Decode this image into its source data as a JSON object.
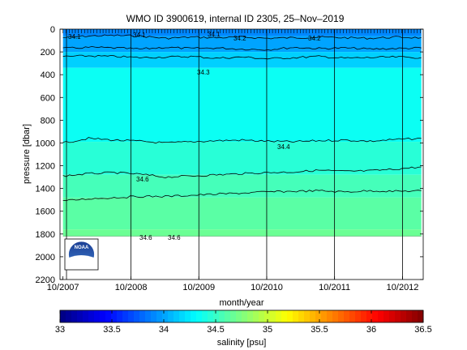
{
  "title": "WMO ID 3900619, internal ID 2305, 25–Nov–2019",
  "chart_data": {
    "type": "heatmap",
    "title": "WMO ID 3900619, internal ID 2305, 25–Nov–2019",
    "xlabel": "month/year",
    "ylabel": "pressure [dbar]",
    "x_ticks": [
      "10/2007",
      "10/2008",
      "10/2009",
      "10/2010",
      "10/2011",
      "10/2012"
    ],
    "xlim": [
      "2007-09-15",
      "2013-01-20"
    ],
    "ylim": [
      2200,
      0
    ],
    "y_ticks": [
      0,
      200,
      400,
      600,
      800,
      1000,
      1200,
      1400,
      1600,
      1800,
      2000,
      2200
    ],
    "y_reversed": true,
    "data_extent": {
      "x_start": "2007-10-01",
      "x_end": "2013-01-10",
      "max_pressure": 1820
    },
    "vertical_lines": [
      "2007-10-20",
      "2008-10-01",
      "2009-10-01",
      "2010-10-01",
      "2011-10-01",
      "2012-10-01"
    ],
    "colorbar": {
      "label": "salinity [psu]",
      "range": [
        33,
        36.5
      ],
      "ticks": [
        "33",
        "33.5",
        "34",
        "34.5",
        "35",
        "35.5",
        "36",
        "36.5"
      ],
      "colormap": "jet"
    },
    "layers": [
      {
        "p_top": 0,
        "salinity": 33.9
      },
      {
        "p_top": 60,
        "salinity": 34.0
      },
      {
        "p_top": 200,
        "salinity": 34.15
      },
      {
        "p_top": 340,
        "salinity": 34.35
      },
      {
        "p_top": 990,
        "salinity": 34.45
      },
      {
        "p_top": 1280,
        "salinity": 34.55
      },
      {
        "p_top": 1480,
        "salinity": 34.62
      },
      {
        "p_top": 1760,
        "salinity": 34.68
      }
    ],
    "contours": [
      {
        "level": 34.1,
        "pressures": [
          75,
          60,
          55,
          60,
          80,
          70,
          75,
          70,
          80,
          75,
          70,
          75,
          80,
          70,
          75
        ]
      },
      {
        "level": 34.2,
        "pressures": [
          170,
          160,
          165,
          175,
          160,
          170,
          165,
          175,
          180,
          160,
          170,
          165,
          175,
          170,
          165
        ]
      },
      {
        "level": 34.3,
        "pressures": [
          240,
          235,
          240,
          250,
          245,
          240,
          255,
          245,
          260,
          250,
          240,
          255,
          250,
          245,
          250
        ]
      },
      {
        "level": 34.4,
        "pressures": [
          1000,
          960,
          975,
          985,
          1000,
          990,
          980,
          975,
          985,
          990,
          980,
          975,
          985,
          970,
          960
        ]
      },
      {
        "level": 34.5,
        "pressures": [
          1290,
          1270,
          1260,
          1275,
          1300,
          1290,
          1280,
          1270,
          1260,
          1255,
          1240,
          1250,
          1245,
          1230,
          1210
        ]
      },
      {
        "level": 34.6,
        "pressures": [
          1510,
          1490,
          1480,
          1470,
          1470,
          1460,
          1450,
          1440,
          1430,
          1425,
          1420,
          1430,
          1420,
          1425,
          1420
        ]
      }
    ],
    "contour_labels": [
      "34.1",
      "34.1",
      "34.1",
      "34.2",
      "34.2",
      "34.3",
      "34.4",
      "34.6",
      "34.6"
    ]
  },
  "logo": {
    "text": "NOAA"
  }
}
